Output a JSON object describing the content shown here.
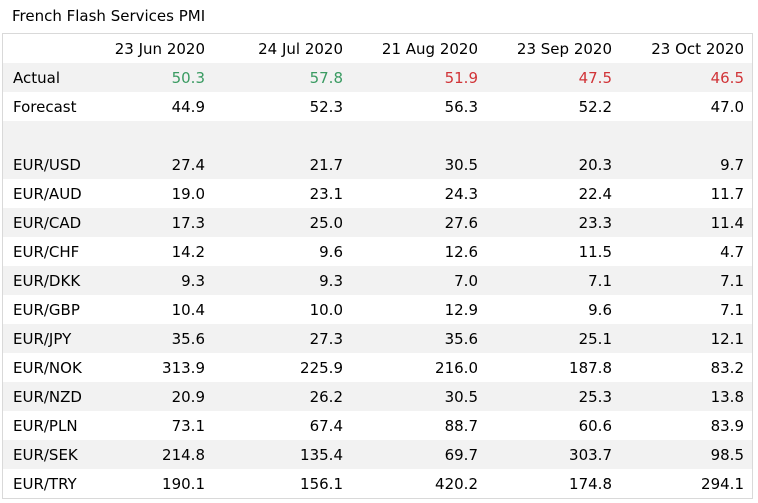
{
  "title": "French Flash Services PMI",
  "columns": [
    "23 Jun 2020",
    "24 Jul 2020",
    "21 Aug 2020",
    "23 Sep 2020",
    "23 Oct 2020"
  ],
  "colors": {
    "above_forecast": "#3a9b62",
    "below_forecast": "#d13438",
    "band": "#f2f2f2"
  },
  "actual": {
    "label": "Actual",
    "values": [
      "50.3",
      "57.8",
      "51.9",
      "47.5",
      "46.5"
    ],
    "status": [
      "up",
      "up",
      "down",
      "down",
      "down"
    ]
  },
  "forecast": {
    "label": "Forecast",
    "values": [
      "44.9",
      "52.3",
      "56.3",
      "52.2",
      "47.0"
    ]
  },
  "pairs": [
    {
      "label": "EUR/USD",
      "values": [
        "27.4",
        "21.7",
        "30.5",
        "20.3",
        "9.7"
      ]
    },
    {
      "label": "EUR/AUD",
      "values": [
        "19.0",
        "23.1",
        "24.3",
        "22.4",
        "11.7"
      ]
    },
    {
      "label": "EUR/CAD",
      "values": [
        "17.3",
        "25.0",
        "27.6",
        "23.3",
        "11.4"
      ]
    },
    {
      "label": "EUR/CHF",
      "values": [
        "14.2",
        "9.6",
        "12.6",
        "11.5",
        "4.7"
      ]
    },
    {
      "label": "EUR/DKK",
      "values": [
        "9.3",
        "9.3",
        "7.0",
        "7.1",
        "7.1"
      ]
    },
    {
      "label": "EUR/GBP",
      "values": [
        "10.4",
        "10.0",
        "12.9",
        "9.6",
        "7.1"
      ]
    },
    {
      "label": "EUR/JPY",
      "values": [
        "35.6",
        "27.3",
        "35.6",
        "25.1",
        "12.1"
      ]
    },
    {
      "label": "EUR/NOK",
      "values": [
        "313.9",
        "225.9",
        "216.0",
        "187.8",
        "83.2"
      ]
    },
    {
      "label": "EUR/NZD",
      "values": [
        "20.9",
        "26.2",
        "30.5",
        "25.3",
        "13.8"
      ]
    },
    {
      "label": "EUR/PLN",
      "values": [
        "73.1",
        "67.4",
        "88.7",
        "60.6",
        "83.9"
      ]
    },
    {
      "label": "EUR/SEK",
      "values": [
        "214.8",
        "135.4",
        "69.7",
        "303.7",
        "98.5"
      ]
    },
    {
      "label": "EUR/TRY",
      "values": [
        "190.1",
        "156.1",
        "420.2",
        "174.8",
        "294.1"
      ]
    }
  ]
}
